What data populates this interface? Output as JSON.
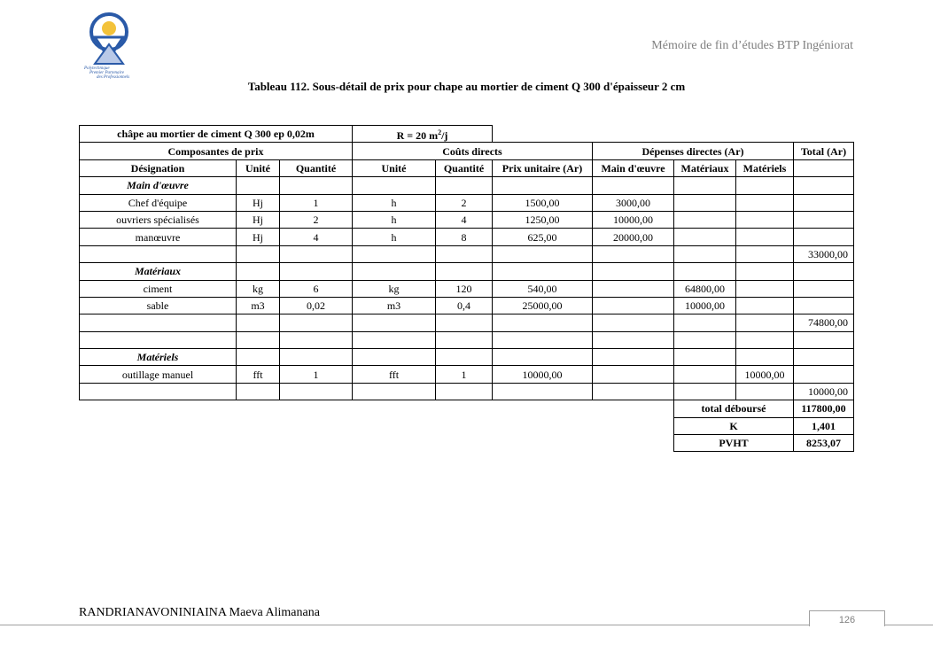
{
  "header": {
    "running_title": "Mémoire de fin d’études BTP Ingéniorat",
    "logo_text": "Polytechnique Premier Partenaire des Professionnels"
  },
  "caption": "Tableau 112. Sous-détail de prix pour chape au mortier de ciment Q 300 d'épaisseur 2 cm",
  "table": {
    "title": "châpe au mortier de ciment Q 300 ep 0,02m",
    "rendement": "R = 20 m²/j",
    "group_headers": [
      "Composantes de prix",
      "Coûts directs",
      "Dépenses directes (Ar)",
      "Total (Ar)"
    ],
    "columns": [
      "Désignation",
      "Unité",
      "Quantité",
      "Unité",
      "Quantité",
      "Prix unitaire (Ar)",
      "Main d'œuvre",
      "Matériaux",
      "Matériels",
      ""
    ],
    "rows": [
      [
        "Main d'œuvre",
        "",
        "",
        "",
        "",
        "",
        "",
        "",
        "",
        ""
      ],
      [
        "Chef d'équipe",
        "Hj",
        "1",
        "h",
        "2",
        "1500,00",
        "3000,00",
        "",
        "",
        ""
      ],
      [
        "ouvriers spécialisés",
        "Hj",
        "2",
        "h",
        "4",
        "1250,00",
        "10000,00",
        "",
        "",
        ""
      ],
      [
        "manœuvre",
        "Hj",
        "4",
        "h",
        "8",
        "625,00",
        "20000,00",
        "",
        "",
        ""
      ],
      [
        "",
        "",
        "",
        "",
        "",
        "",
        "",
        "",
        "",
        "33000,00"
      ],
      [
        "Matériaux",
        "",
        "",
        "",
        "",
        "",
        "",
        "",
        "",
        ""
      ],
      [
        "ciment",
        "kg",
        "6",
        "kg",
        "120",
        "540,00",
        "",
        "64800,00",
        "",
        ""
      ],
      [
        "sable",
        "m3",
        "0,02",
        "m3",
        "0,4",
        "25000,00",
        "",
        "10000,00",
        "",
        ""
      ],
      [
        "",
        "",
        "",
        "",
        "",
        "",
        "",
        "",
        "",
        "74800,00"
      ],
      [
        "",
        "",
        "",
        "",
        "",
        "",
        "",
        "",
        "",
        ""
      ],
      [
        "Matériels",
        "",
        "",
        "",
        "",
        "",
        "",
        "",
        "",
        ""
      ],
      [
        "outillage manuel",
        "fft",
        "1",
        "fft",
        "1",
        "10000,00",
        "",
        "",
        "10000,00",
        ""
      ],
      [
        "",
        "",
        "",
        "",
        "",
        "",
        "",
        "",
        "",
        "10000,00"
      ]
    ],
    "section_rows": [
      0,
      5,
      10
    ],
    "summary": [
      {
        "label": "total déboursé",
        "value": "117800,00"
      },
      {
        "label": "K",
        "value": "1,401"
      },
      {
        "label": "PVHT",
        "value": "8253,07"
      }
    ]
  },
  "footer": {
    "author": "RANDRIANAVONINIAINA Maeva Alimanana",
    "page": "126"
  }
}
